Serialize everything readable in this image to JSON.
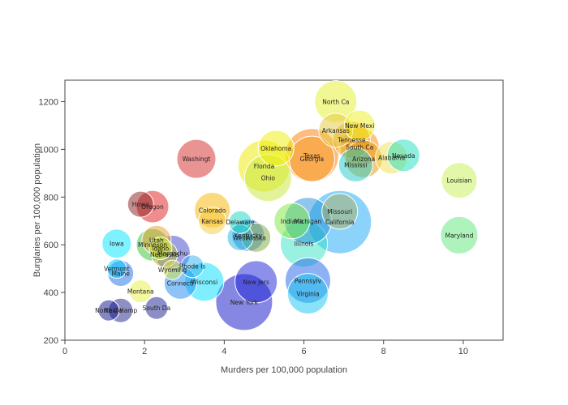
{
  "chart_data": {
    "type": "scatter",
    "xlabel": "Murders per 100,000 population",
    "ylabel": "Burglaries per 100,000 population",
    "xlim": [
      0,
      11
    ],
    "ylim": [
      200,
      1290
    ],
    "x_ticks": [
      0,
      2,
      4,
      6,
      8,
      10
    ],
    "y_ticks": [
      200,
      400,
      600,
      800,
      1000,
      1200
    ],
    "grid": false,
    "bubble_opacity": 0.5,
    "points": [
      {
        "label": "Washingt",
        "x": 3.3,
        "y": 960,
        "size": 24,
        "color": "#d62728"
      },
      {
        "label": "Howa",
        "x": 1.9,
        "y": 770,
        "size": 16,
        "color": "#8b1a1a"
      },
      {
        "label": "Oregon",
        "x": 2.2,
        "y": 760,
        "size": 20,
        "color": "#e31a1c"
      },
      {
        "label": "Colorado",
        "x": 3.7,
        "y": 745,
        "size": 22,
        "color": "#f5b400"
      },
      {
        "label": "Kansas",
        "x": 3.7,
        "y": 700,
        "size": 17,
        "color": "#f7c93a"
      },
      {
        "label": "Delaware",
        "x": 4.4,
        "y": 695,
        "size": 14,
        "color": "#17d6c0"
      },
      {
        "label": "Kentucky",
        "x": 4.6,
        "y": 640,
        "size": 20,
        "color": "#1f77e8"
      },
      {
        "label": "West",
        "x": 4.4,
        "y": 630,
        "size": 16,
        "color": "#1bb3e0"
      },
      {
        "label": "Alaska",
        "x": 4.8,
        "y": 630,
        "size": 18,
        "color": "#7fa83a"
      },
      {
        "label": "Iowa",
        "x": 1.3,
        "y": 605,
        "size": 18,
        "color": "#00e5ff"
      },
      {
        "label": "Utah",
        "x": 2.3,
        "y": 620,
        "size": 18,
        "color": "#e89b2a"
      },
      {
        "label": "Minneson",
        "x": 2.2,
        "y": 600,
        "size": 20,
        "color": "#31c42f"
      },
      {
        "label": "Idaho",
        "x": 2.4,
        "y": 585,
        "size": 14,
        "color": "#c9e83a"
      },
      {
        "label": "Nebraska",
        "x": 2.5,
        "y": 560,
        "size": 16,
        "color": "#b5b52a"
      },
      {
        "label": "Massachu",
        "x": 2.7,
        "y": 565,
        "size": 22,
        "color": "#3b43c9"
      },
      {
        "label": "Rhode Is",
        "x": 3.2,
        "y": 510,
        "size": 14,
        "color": "#2fb0f0"
      },
      {
        "label": "Wyoming",
        "x": 2.7,
        "y": 495,
        "size": 12,
        "color": "#d7e840"
      },
      {
        "label": "Connecti",
        "x": 2.9,
        "y": 440,
        "size": 20,
        "color": "#1a8af0"
      },
      {
        "label": "Wisconsi",
        "x": 3.5,
        "y": 445,
        "size": 24,
        "color": "#00e0ff"
      },
      {
        "label": "Vermont",
        "x": 1.3,
        "y": 500,
        "size": 12,
        "color": "#00c8ff"
      },
      {
        "label": "Maine",
        "x": 1.4,
        "y": 480,
        "size": 16,
        "color": "#1a70e8"
      },
      {
        "label": "Montana",
        "x": 1.9,
        "y": 405,
        "size": 14,
        "color": "#e8f040"
      },
      {
        "label": "North Da",
        "x": 1.1,
        "y": 325,
        "size": 13,
        "color": "#0a0f8a"
      },
      {
        "label": "New Hamp",
        "x": 1.4,
        "y": 325,
        "size": 15,
        "color": "#1d1f8c"
      },
      {
        "label": "South Da",
        "x": 2.3,
        "y": 335,
        "size": 14,
        "color": "#1a1f8f"
      },
      {
        "label": "New Jers",
        "x": 4.8,
        "y": 445,
        "size": 26,
        "color": "#1a22d8"
      },
      {
        "label": "New York",
        "x": 4.5,
        "y": 360,
        "size": 35,
        "color": "#0d0fc8"
      },
      {
        "label": "Pennsylv",
        "x": 6.1,
        "y": 450,
        "size": 28,
        "color": "#1e63e8"
      },
      {
        "label": "Virginia",
        "x": 6.1,
        "y": 395,
        "size": 25,
        "color": "#14c6f0"
      },
      {
        "label": "Illinois",
        "x": 6.0,
        "y": 605,
        "size": 29,
        "color": "#36e2c4"
      },
      {
        "label": "Indiana",
        "x": 5.7,
        "y": 700,
        "size": 22,
        "color": "#7be83a"
      },
      {
        "label": "Michigan",
        "x": 6.1,
        "y": 700,
        "size": 29,
        "color": "#1e90d8"
      },
      {
        "label": "California",
        "x": 6.9,
        "y": 695,
        "size": 39,
        "color": "#18a8f5"
      },
      {
        "label": "Missouri",
        "x": 6.9,
        "y": 740,
        "size": 22,
        "color": "#a8b060"
      },
      {
        "label": "Florida",
        "x": 5.0,
        "y": 930,
        "size": 32,
        "color": "#f0e800"
      },
      {
        "label": "Ohio",
        "x": 5.1,
        "y": 880,
        "size": 29,
        "color": "#c6e83a"
      },
      {
        "label": "Oklahoma",
        "x": 5.3,
        "y": 1005,
        "size": 22,
        "color": "#f0f000"
      },
      {
        "label": "Texas",
        "x": 6.2,
        "y": 975,
        "size": 33,
        "color": "#ff7a00"
      },
      {
        "label": "Georgia",
        "x": 6.2,
        "y": 960,
        "size": 28,
        "color": "#f59a1f"
      },
      {
        "label": "North Ca",
        "x": 6.8,
        "y": 1200,
        "size": 26,
        "color": "#e3f028"
      },
      {
        "label": "Arkansas",
        "x": 6.8,
        "y": 1080,
        "size": 21,
        "color": "#e6c83a"
      },
      {
        "label": "New Mexi",
        "x": 7.4,
        "y": 1100,
        "size": 19,
        "color": "#f0f020"
      },
      {
        "label": "Tennesse",
        "x": 7.2,
        "y": 1040,
        "size": 23,
        "color": "#f0a000"
      },
      {
        "label": "South Ca",
        "x": 7.4,
        "y": 1010,
        "size": 24,
        "color": "#ff8a00"
      },
      {
        "label": "Arizona",
        "x": 7.5,
        "y": 960,
        "size": 23,
        "color": "#e8960c"
      },
      {
        "label": "Mississi",
        "x": 7.3,
        "y": 935,
        "size": 21,
        "color": "#1ec8c8"
      },
      {
        "label": "Alabama",
        "x": 8.2,
        "y": 965,
        "size": 20,
        "color": "#f0e050"
      },
      {
        "label": "Nevada",
        "x": 8.5,
        "y": 975,
        "size": 20,
        "color": "#1ee0c0"
      },
      {
        "label": "Louisian",
        "x": 9.9,
        "y": 870,
        "size": 22,
        "color": "#c6f050"
      },
      {
        "label": "Maryland",
        "x": 9.9,
        "y": 640,
        "size": 23,
        "color": "#60e87a"
      }
    ]
  }
}
